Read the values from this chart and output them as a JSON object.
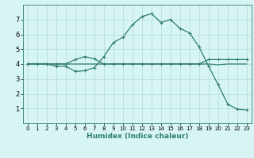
{
  "title": "",
  "xlabel": "Humidex (Indice chaleur)",
  "bg_color": "#d8f5f5",
  "grid_color": "#b8dede",
  "line_color": "#2e7d6e",
  "xlim": [
    -0.5,
    23.5
  ],
  "ylim": [
    0,
    8
  ],
  "xticks": [
    0,
    1,
    2,
    3,
    4,
    5,
    6,
    7,
    8,
    9,
    10,
    11,
    12,
    13,
    14,
    15,
    16,
    17,
    18,
    19,
    20,
    21,
    22,
    23
  ],
  "yticks": [
    1,
    2,
    3,
    4,
    5,
    6,
    7
  ],
  "curve1_x": [
    0,
    1,
    2,
    3,
    4,
    5,
    6,
    7,
    8,
    9,
    10,
    11,
    12,
    13,
    14,
    15,
    16,
    17,
    18,
    19,
    20,
    21,
    22,
    23
  ],
  "curve1_y": [
    4,
    4,
    4,
    3.85,
    3.85,
    3.5,
    3.55,
    3.75,
    4.5,
    5.45,
    5.8,
    6.65,
    7.2,
    7.4,
    6.8,
    7.0,
    6.4,
    6.1,
    5.15,
    3.85,
    2.6,
    1.3,
    0.95,
    0.9
  ],
  "curve2_x": [
    0,
    1,
    2,
    3,
    4,
    5,
    6,
    7,
    8,
    9,
    10,
    11,
    12,
    13,
    14,
    15,
    16,
    17,
    18,
    19,
    20,
    21,
    22,
    23
  ],
  "curve2_y": [
    4,
    4,
    4,
    4,
    4,
    4.3,
    4.5,
    4.35,
    4,
    4,
    4,
    4,
    4,
    4,
    4,
    4,
    4,
    4,
    4,
    4.3,
    4.3,
    4.3,
    4.3,
    4.3
  ],
  "curve3_x": [
    0,
    1,
    2,
    3,
    4,
    5,
    6,
    7,
    8,
    9,
    10,
    11,
    12,
    13,
    14,
    15,
    16,
    17,
    18,
    19,
    20,
    21,
    22,
    23
  ],
  "curve3_y": [
    4,
    4,
    4,
    4,
    4,
    4,
    4,
    4,
    4,
    4,
    4,
    4,
    4,
    4,
    4,
    4,
    4,
    4,
    4,
    4,
    3.95,
    4,
    4,
    4
  ]
}
